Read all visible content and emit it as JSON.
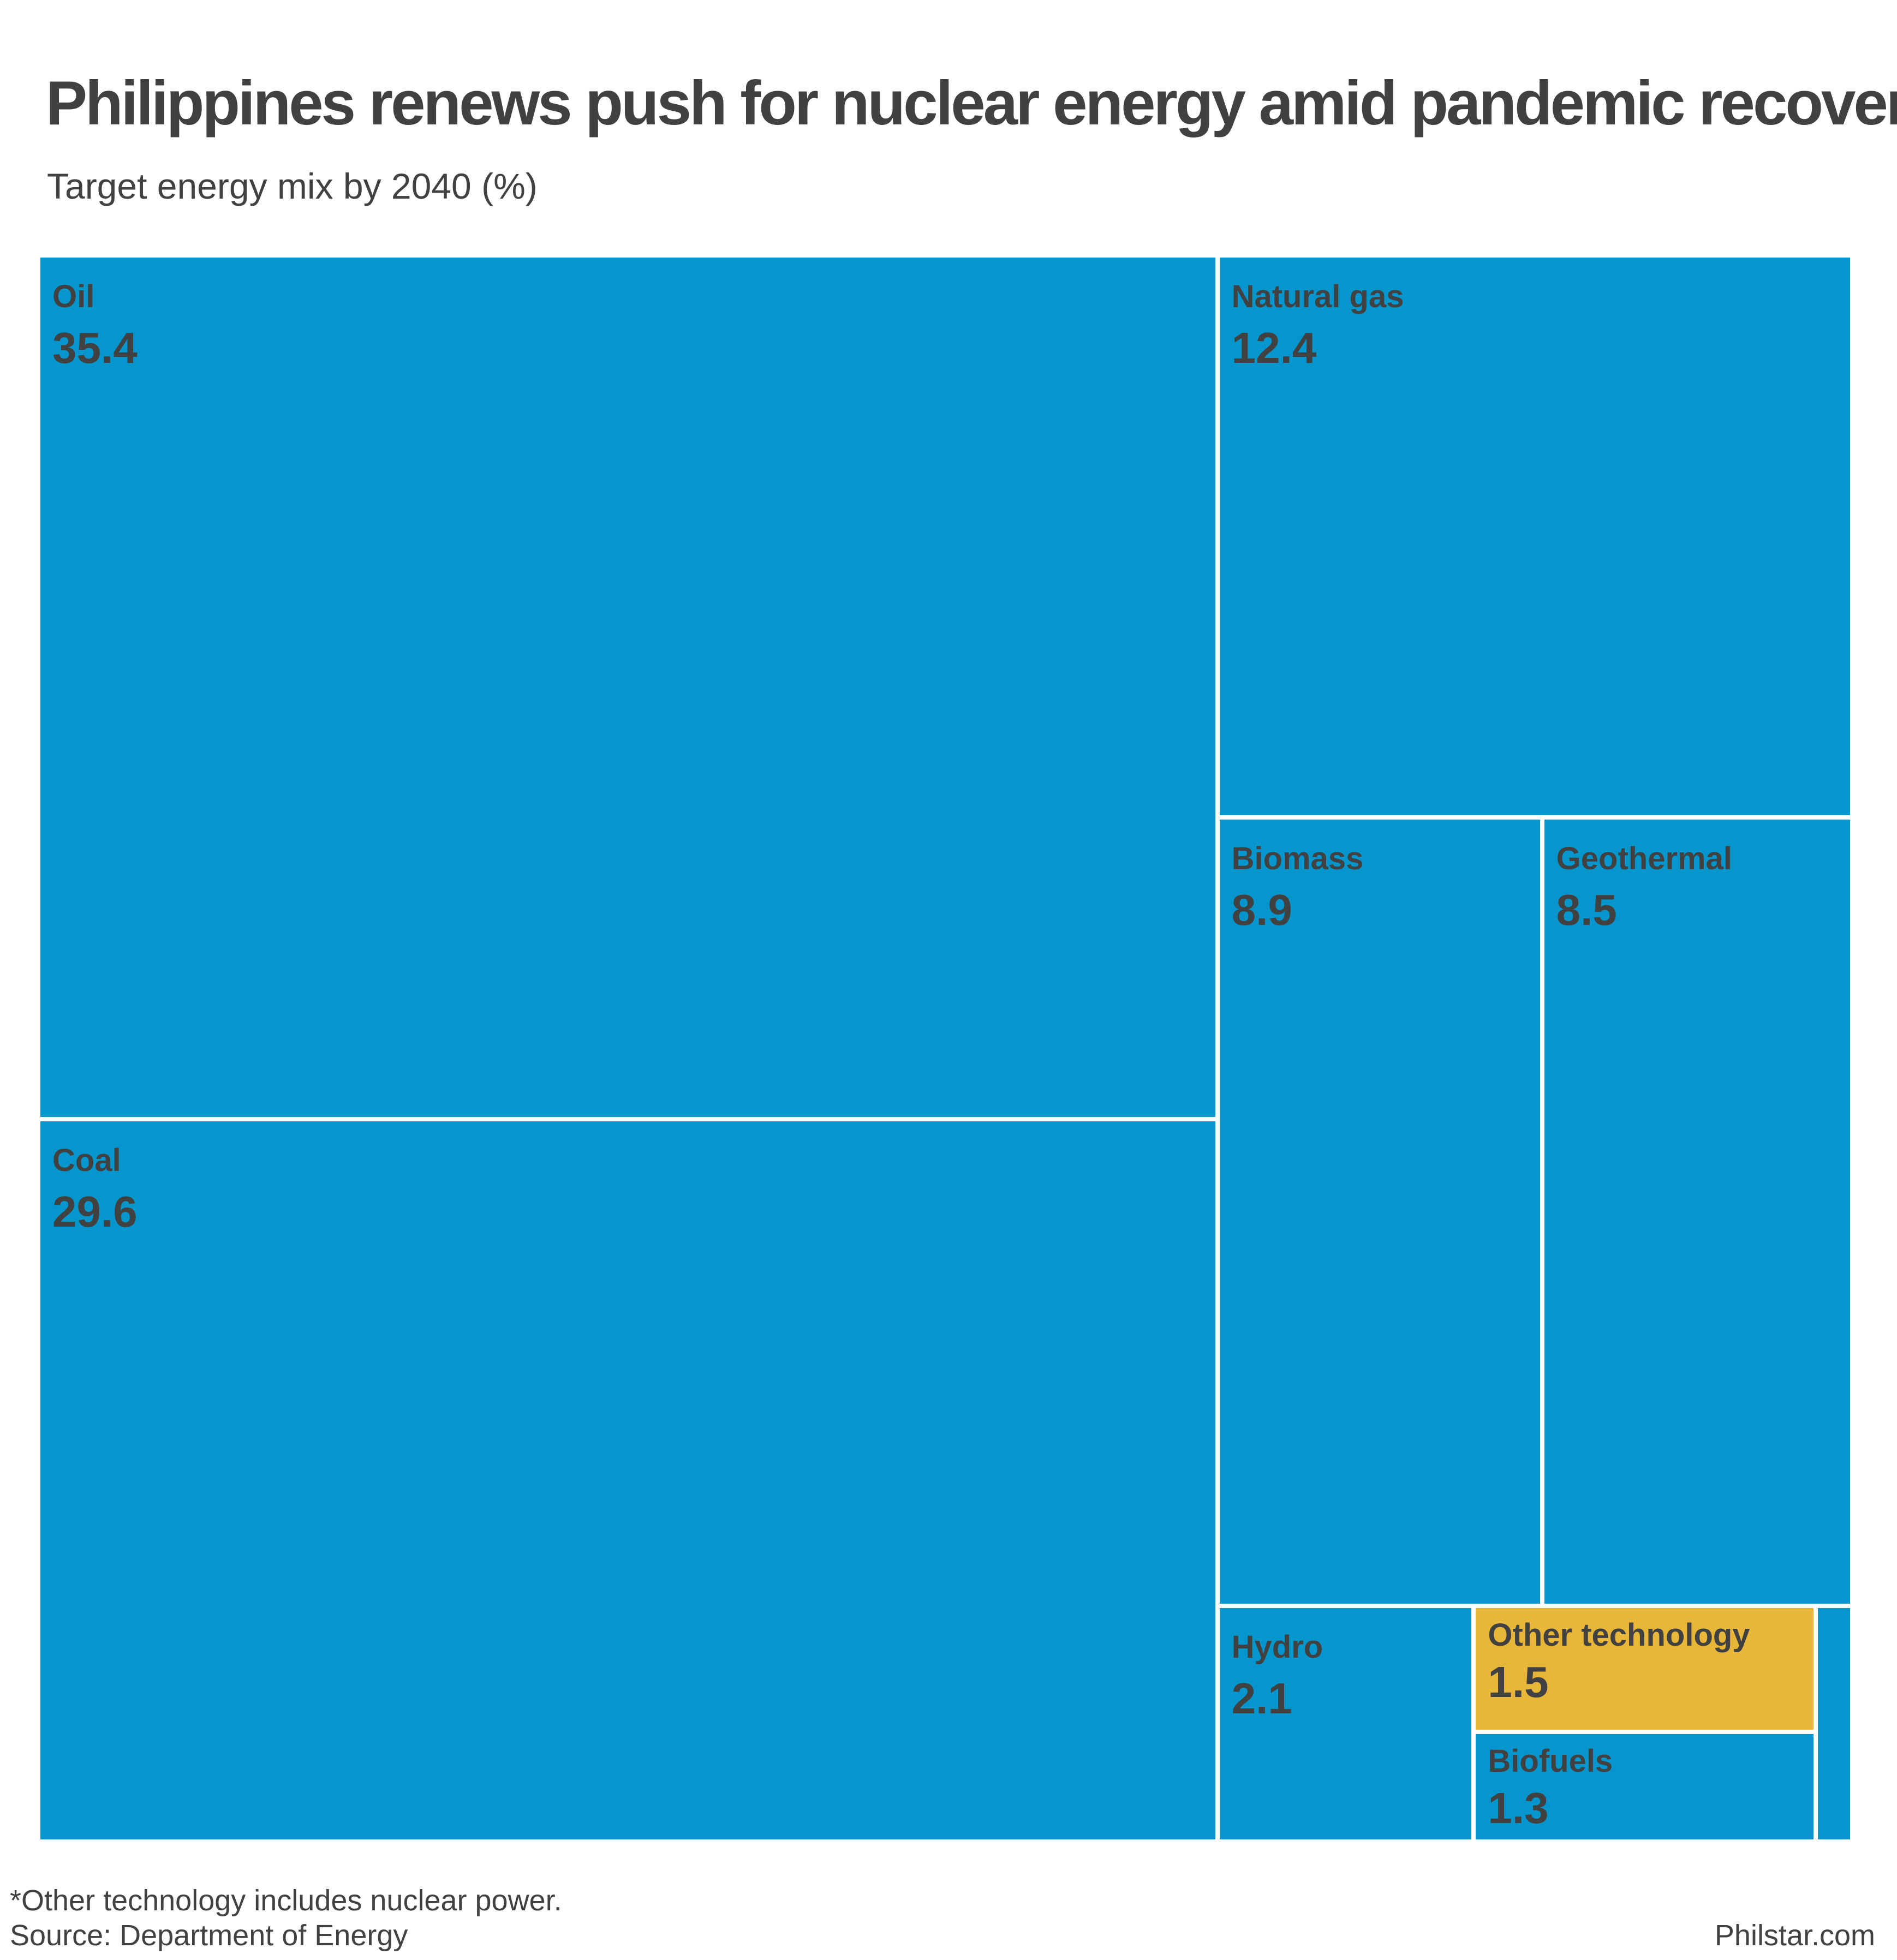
{
  "title": "Philippines renews push for nuclear energy amid pandemic recovery",
  "subtitle": "Target energy mix by 2040 (%)",
  "footnote": "*Other technology includes nuclear power.",
  "source": "Source: Department of Energy",
  "credit": "Philstar.com",
  "colors": {
    "primary": "#0496cc",
    "highlight": "#e8b73a",
    "text": "#414141",
    "border": "#ffffff"
  },
  "chart_data": {
    "type": "treemap",
    "title": "Philippines renews push for nuclear energy amid pandemic recovery",
    "subtitle": "Target energy mix by 2040 (%)",
    "unit": "%",
    "items": [
      {
        "label": "Oil",
        "value": 35.4,
        "color": "#0496cc"
      },
      {
        "label": "Coal",
        "value": 29.6,
        "color": "#0496cc"
      },
      {
        "label": "Natural gas",
        "value": 12.4,
        "color": "#0496cc"
      },
      {
        "label": "Biomass",
        "value": 8.9,
        "color": "#0496cc"
      },
      {
        "label": "Geothermal",
        "value": 8.5,
        "color": "#0496cc"
      },
      {
        "label": "Hydro",
        "value": 2.1,
        "color": "#0496cc"
      },
      {
        "label": "Other technology",
        "value": 1.5,
        "color": "#e8b73a"
      },
      {
        "label": "Biofuels",
        "value": 1.3,
        "color": "#0496cc"
      },
      {
        "label": "",
        "value": 0.3,
        "color": "#0496cc"
      }
    ]
  }
}
